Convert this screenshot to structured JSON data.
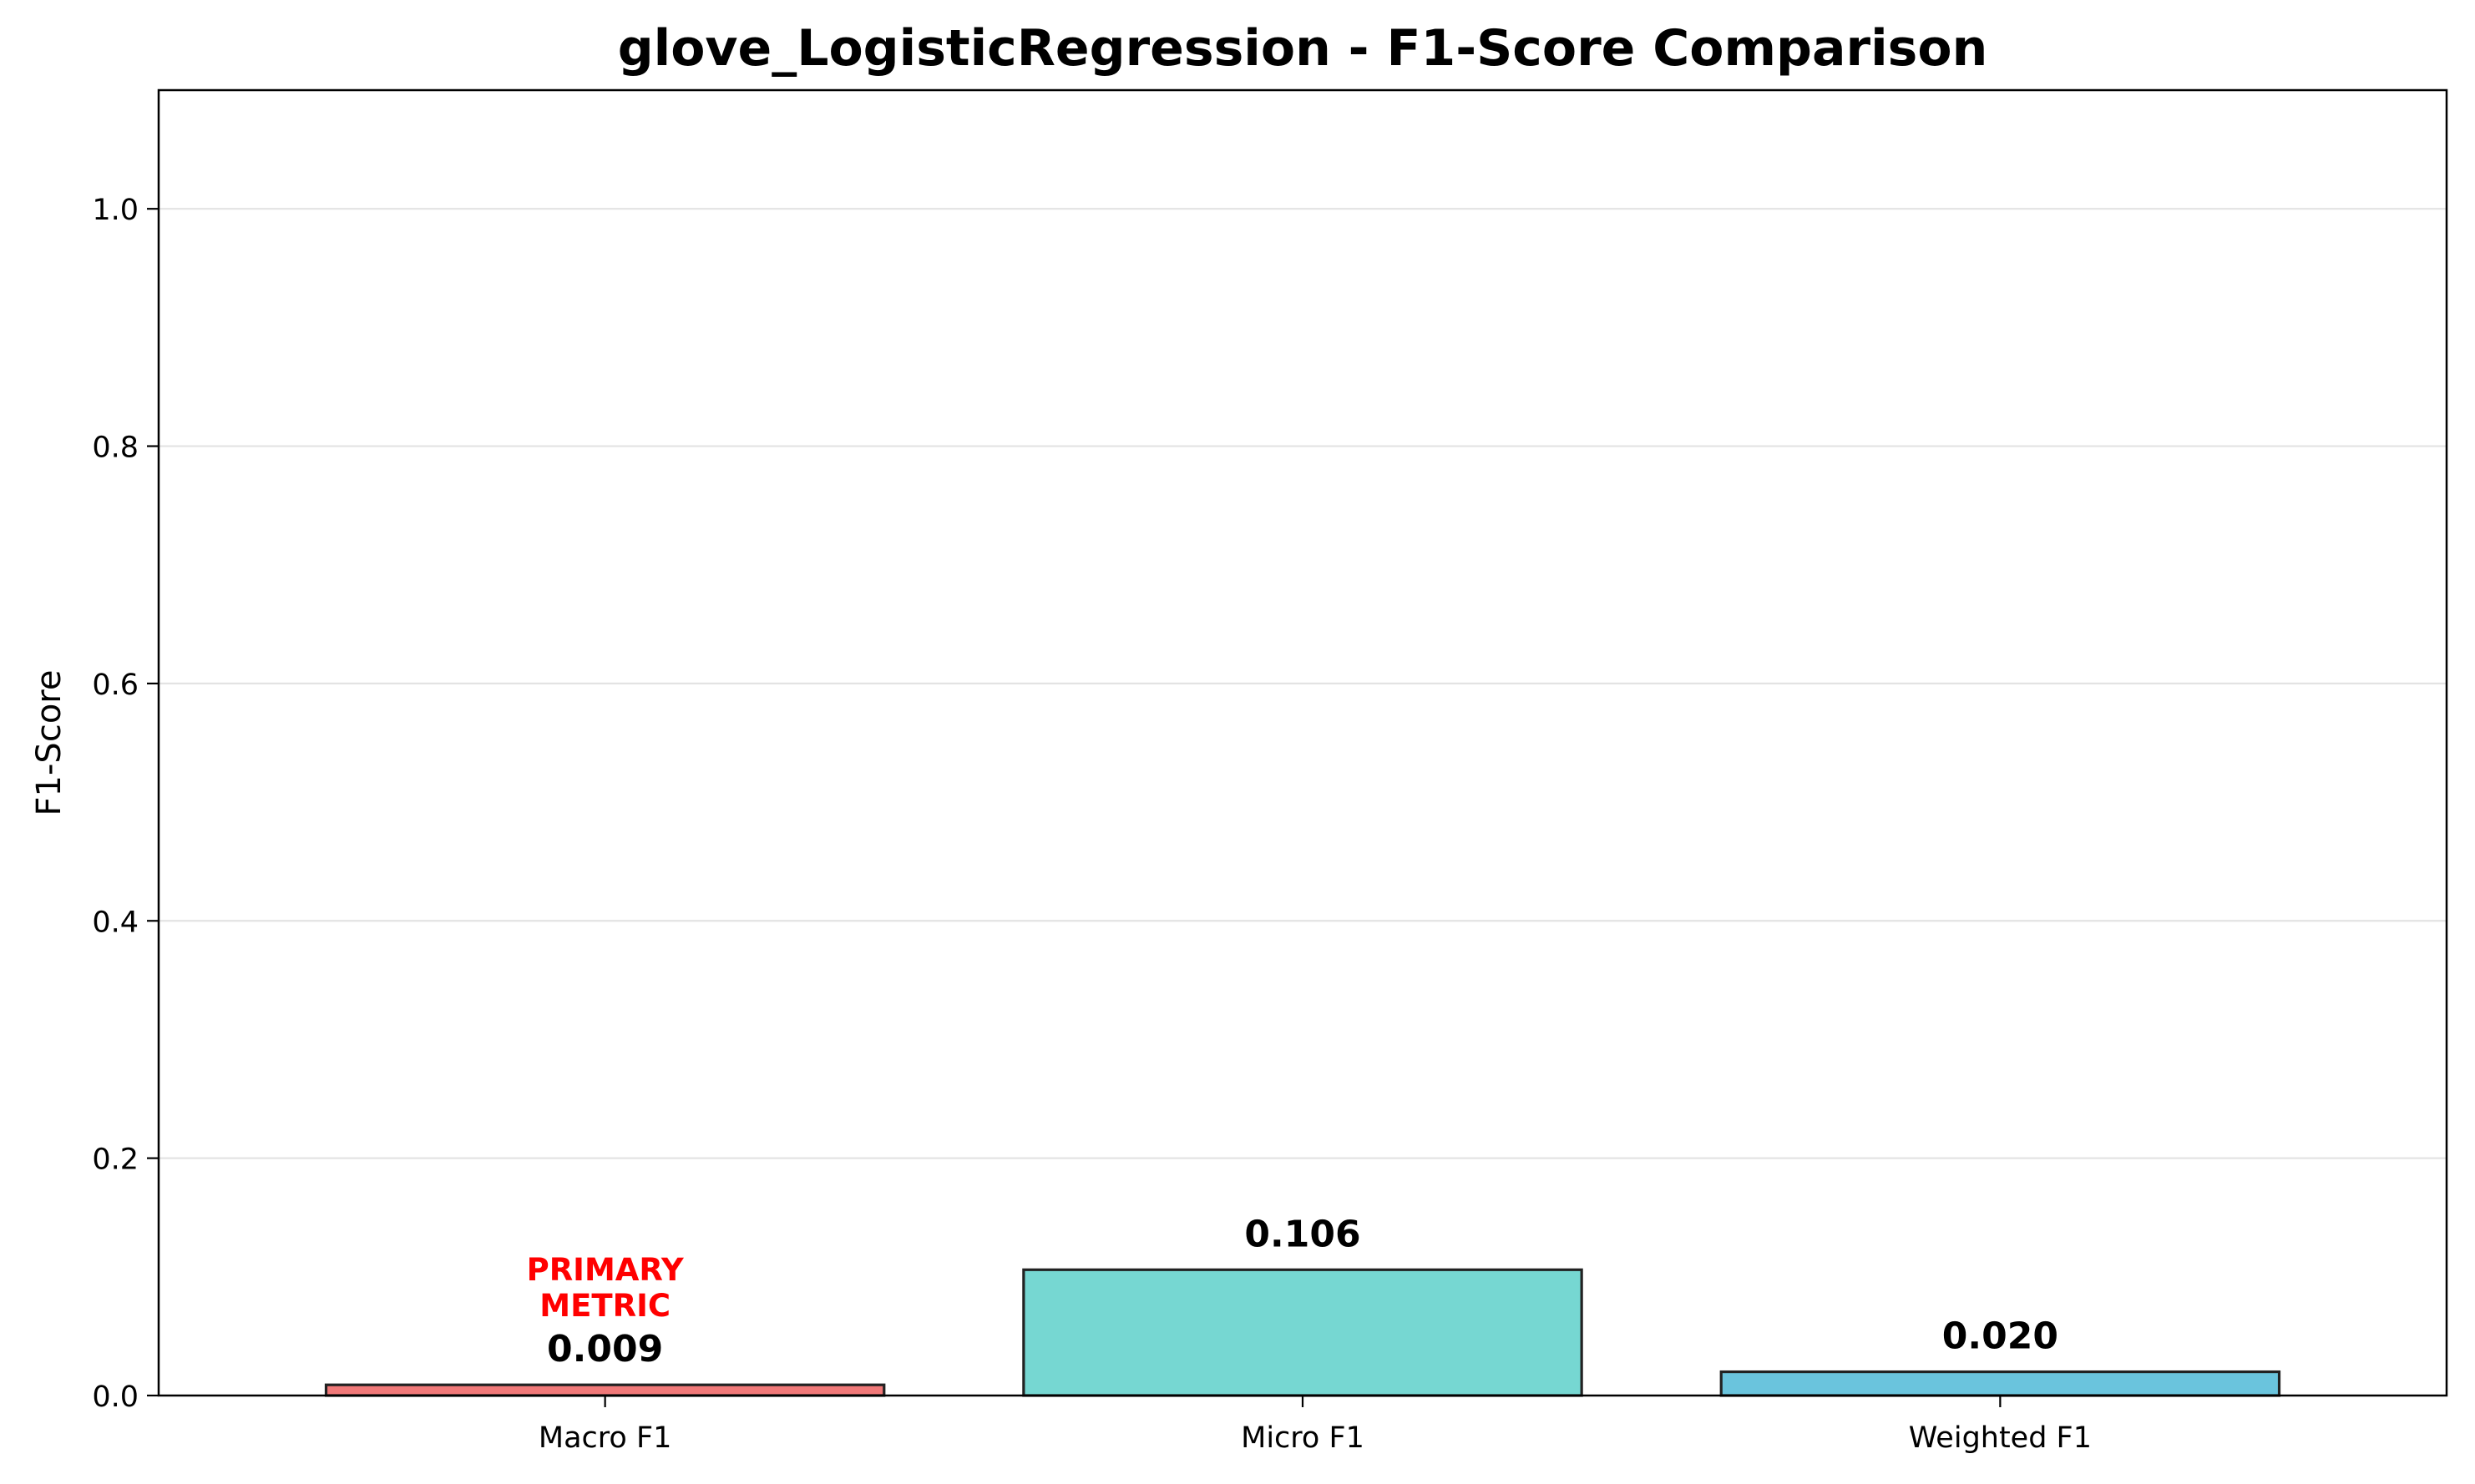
{
  "chart_data": {
    "type": "bar",
    "title": "glove_LogisticRegression - F1-Score Comparison",
    "xlabel": "",
    "ylabel": "F1-Score",
    "categories": [
      "Macro F1",
      "Micro F1",
      "Weighted F1"
    ],
    "values": [
      0.009,
      0.106,
      0.02
    ],
    "value_labels": [
      "0.009",
      "0.106",
      "0.020"
    ],
    "colors": [
      "#f07878",
      "#76d7d2",
      "#6ac4dd"
    ],
    "edge_color": "#222222",
    "ylim": [
      0,
      1.1
    ],
    "yticks": [
      0.0,
      0.2,
      0.4,
      0.6,
      0.8,
      1.0
    ],
    "ytick_labels": [
      "0.0",
      "0.2",
      "0.4",
      "0.6",
      "0.8",
      "1.0"
    ],
    "grid": "horizontal",
    "annotation": {
      "category": "Macro F1",
      "lines": [
        "PRIMARY",
        "METRIC"
      ],
      "color": "#ff0000"
    }
  }
}
